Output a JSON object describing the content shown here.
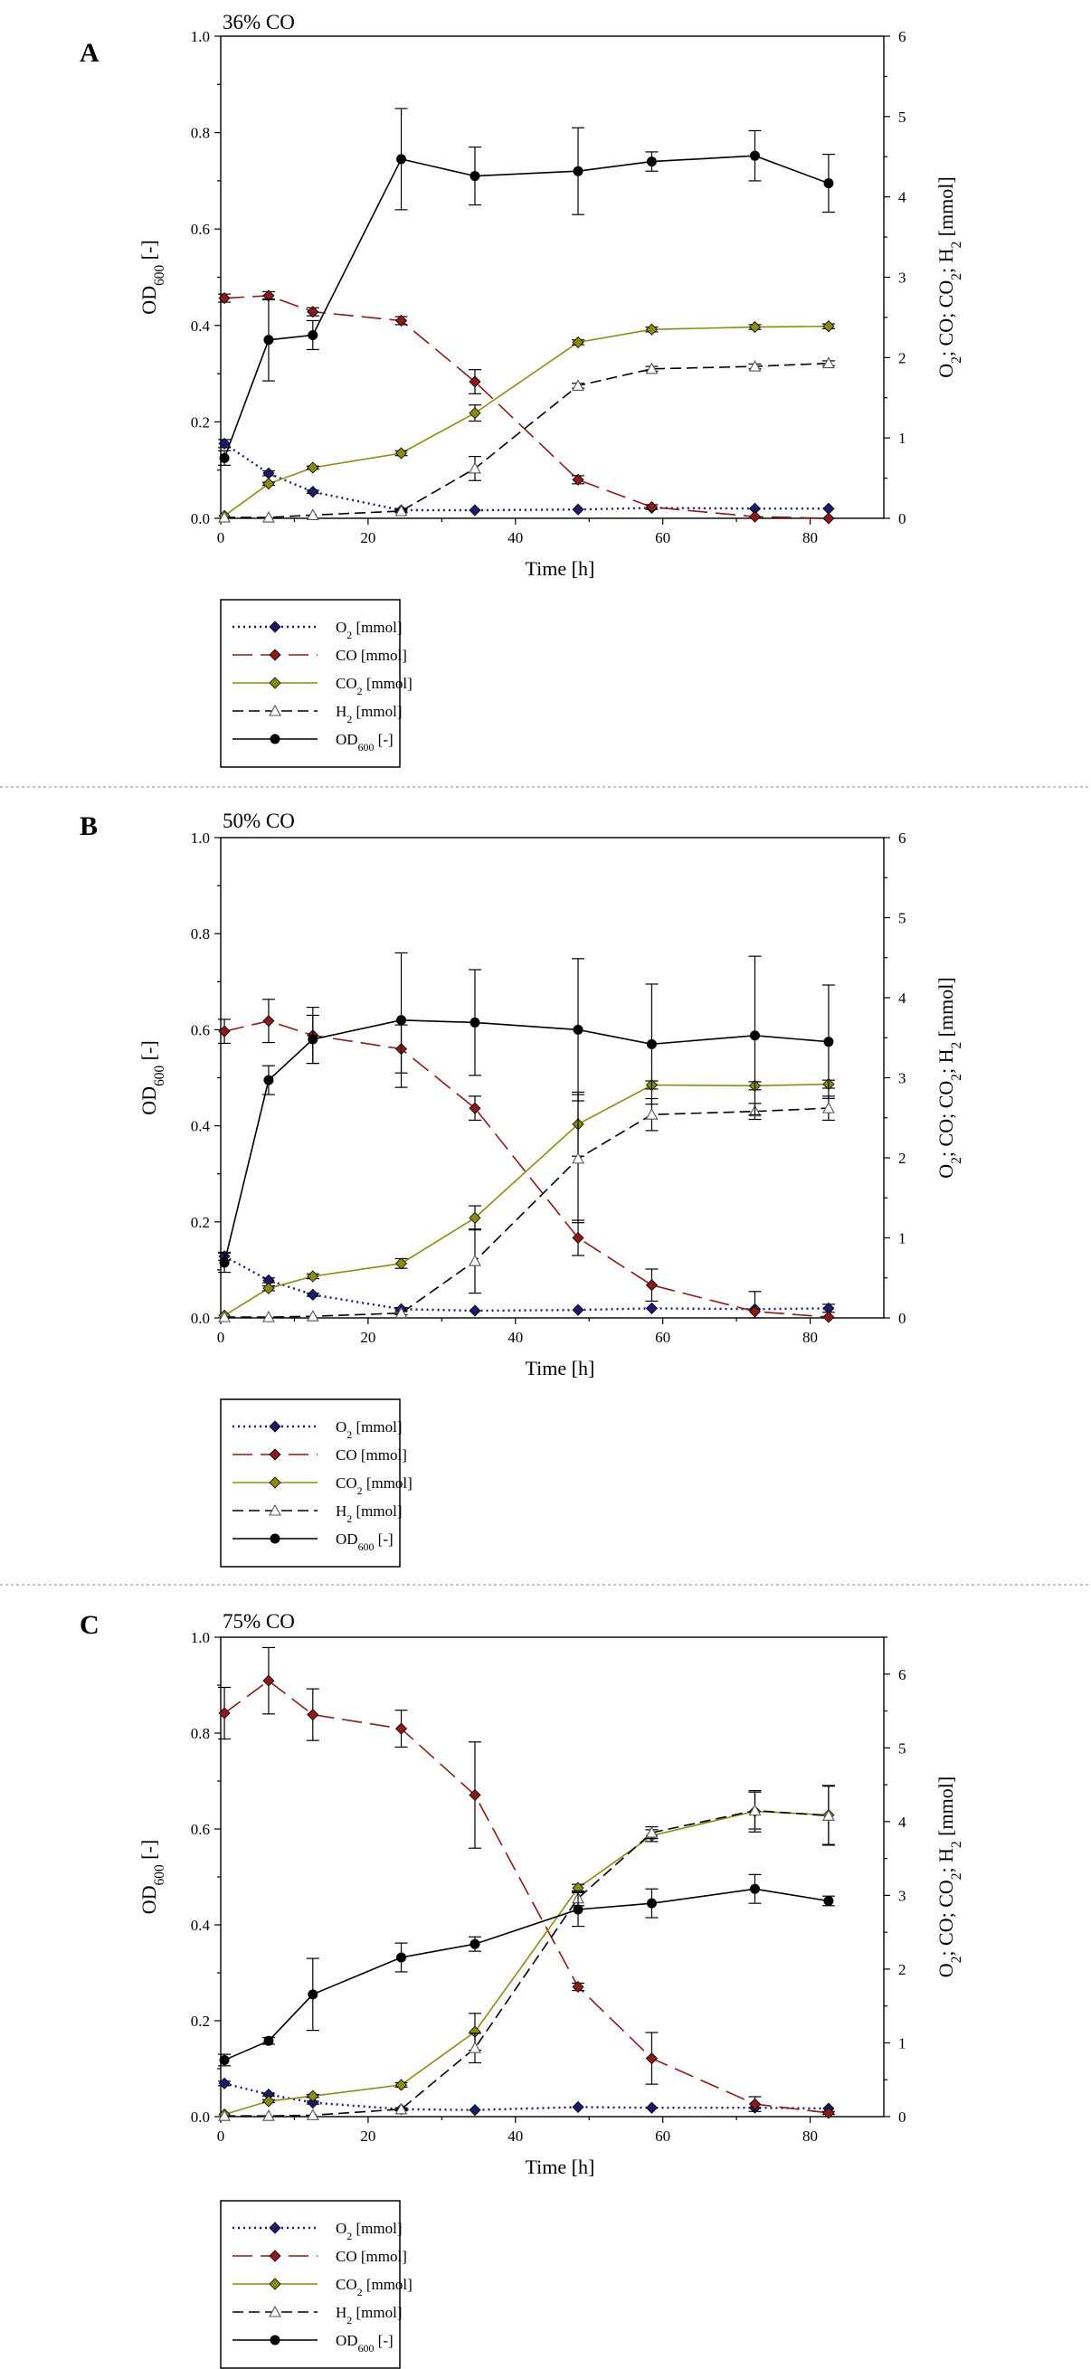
{
  "chart_data": [
    {
      "type": "line",
      "panel_label": "A",
      "title": "36% CO",
      "xlabel": "Time [h]",
      "ylabel": "OD600 [-]",
      "ylabel_right": "O2; CO; CO2; H2 [mmol]",
      "xlim": [
        0,
        90
      ],
      "ylim": [
        0,
        1.0
      ],
      "ylim_right": [
        0,
        6
      ],
      "xticks": [
        "0",
        "20",
        "40",
        "60",
        "80"
      ],
      "yticks": [
        "0.0",
        "0.2",
        "0.4",
        "0.6",
        "0.8",
        "1.0"
      ],
      "yticks_right": [
        "0",
        "1",
        "2",
        "3",
        "4",
        "5",
        "6"
      ],
      "series": [
        {
          "name": "O2 [mmol]",
          "axis": "right",
          "color": "#1a1a6e",
          "style": "dotted",
          "marker": "diamond",
          "x": [
            0.5,
            6.5,
            12.5,
            24.5,
            34.5,
            48.5,
            58.5,
            72.5,
            82.5
          ],
          "y": [
            0.93,
            0.56,
            0.33,
            0.1,
            0.1,
            0.11,
            0.13,
            0.12,
            0.12
          ],
          "err": [
            0.05,
            0.03,
            0.02,
            0.02,
            0.01,
            0.01,
            0.01,
            0.01,
            0.01
          ]
        },
        {
          "name": "CO [mmol]",
          "axis": "right",
          "color": "#8b1a1a",
          "style": "longdash",
          "marker": "diamond",
          "x": [
            0.5,
            6.5,
            12.5,
            24.5,
            34.5,
            48.5,
            58.5,
            72.5,
            82.5
          ],
          "y": [
            2.74,
            2.77,
            2.57,
            2.46,
            1.7,
            0.48,
            0.14,
            0.02,
            0.0
          ],
          "err": [
            0.05,
            0.05,
            0.05,
            0.05,
            0.15,
            0.05,
            0.03,
            0.01,
            0.01
          ]
        },
        {
          "name": "CO2 [mmol]",
          "axis": "right",
          "color": "#8b8b14",
          "style": "solid",
          "marker": "diamond",
          "x": [
            0.5,
            6.5,
            12.5,
            24.5,
            34.5,
            48.5,
            58.5,
            72.5,
            82.5
          ],
          "y": [
            0.03,
            0.43,
            0.63,
            0.81,
            1.31,
            2.19,
            2.35,
            2.38,
            2.39
          ],
          "err": [
            0.01,
            0.02,
            0.02,
            0.03,
            0.1,
            0.03,
            0.03,
            0.03,
            0.03
          ]
        },
        {
          "name": "H2 [mmol]",
          "axis": "right",
          "color": "#000000",
          "style": "dashed",
          "marker": "triangle",
          "x": [
            0.5,
            6.5,
            12.5,
            24.5,
            34.5,
            48.5,
            58.5,
            72.5,
            82.5
          ],
          "y": [
            0.01,
            0.01,
            0.04,
            0.09,
            0.62,
            1.65,
            1.86,
            1.89,
            1.93
          ],
          "err": [
            0.01,
            0.01,
            0.01,
            0.02,
            0.15,
            0.03,
            0.03,
            0.03,
            0.03
          ]
        },
        {
          "name": "OD600 [-]",
          "axis": "left",
          "color": "#000000",
          "style": "solid",
          "marker": "circle",
          "x": [
            0.5,
            6.5,
            12.5,
            24.5,
            34.5,
            48.5,
            58.5,
            72.5,
            82.5
          ],
          "y": [
            0.125,
            0.37,
            0.38,
            0.745,
            0.71,
            0.72,
            0.74,
            0.752,
            0.695
          ],
          "err": [
            0.015,
            0.085,
            0.03,
            0.105,
            0.06,
            0.09,
            0.02,
            0.052,
            0.06
          ]
        }
      ]
    },
    {
      "type": "line",
      "panel_label": "B",
      "title": "50% CO",
      "xlabel": "Time [h]",
      "ylabel": "OD600 [-]",
      "ylabel_right": "O2; CO; CO2; H2 [mmol]",
      "xlim": [
        0,
        90
      ],
      "ylim": [
        0,
        1.0
      ],
      "ylim_right": [
        0,
        6
      ],
      "xticks": [
        "0",
        "20",
        "40",
        "60",
        "80"
      ],
      "yticks": [
        "0.0",
        "0.2",
        "0.4",
        "0.6",
        "0.8",
        "1.0"
      ],
      "yticks_right": [
        "0",
        "1",
        "2",
        "3",
        "4",
        "5",
        "6"
      ],
      "series": [
        {
          "name": "O2 [mmol]",
          "axis": "right",
          "color": "#1a1a6e",
          "style": "dotted",
          "marker": "diamond",
          "x": [
            0.5,
            6.5,
            12.5,
            24.5,
            34.5,
            48.5,
            58.5,
            72.5,
            82.5
          ],
          "y": [
            0.77,
            0.47,
            0.29,
            0.11,
            0.09,
            0.1,
            0.12,
            0.11,
            0.12
          ],
          "err": [
            0.05,
            0.03,
            0.02,
            0.02,
            0.01,
            0.01,
            0.01,
            0.01,
            0.05
          ]
        },
        {
          "name": "CO [mmol]",
          "axis": "right",
          "color": "#8b1a1a",
          "style": "longdash",
          "marker": "diamond",
          "x": [
            0.5,
            6.5,
            12.5,
            24.5,
            34.5,
            48.5,
            58.5,
            72.5,
            82.5
          ],
          "y": [
            3.58,
            3.71,
            3.53,
            3.36,
            2.62,
            1.0,
            0.41,
            0.08,
            0.01
          ],
          "err": [
            0.15,
            0.27,
            0.35,
            0.3,
            0.15,
            0.22,
            0.2,
            0.25,
            0.01
          ]
        },
        {
          "name": "CO2 [mmol]",
          "axis": "right",
          "color": "#8b8b14",
          "style": "solid",
          "marker": "diamond",
          "x": [
            0.5,
            6.5,
            12.5,
            24.5,
            34.5,
            48.5,
            58.5,
            72.5,
            82.5
          ],
          "y": [
            0.03,
            0.37,
            0.52,
            0.68,
            1.25,
            2.42,
            2.91,
            2.9,
            2.92
          ],
          "err": [
            0.01,
            0.03,
            0.03,
            0.06,
            0.15,
            0.4,
            0.05,
            0.05,
            0.05
          ]
        },
        {
          "name": "H2 [mmol]",
          "axis": "right",
          "color": "#000000",
          "style": "dashed",
          "marker": "triangle",
          "x": [
            0.5,
            6.5,
            12.5,
            24.5,
            34.5,
            48.5,
            58.5,
            72.5,
            82.5
          ],
          "y": [
            0.01,
            0.01,
            0.02,
            0.06,
            0.71,
            1.99,
            2.54,
            2.58,
            2.62
          ],
          "err": [
            0.01,
            0.01,
            0.01,
            0.02,
            0.4,
            0.8,
            0.2,
            0.1,
            0.15
          ]
        },
        {
          "name": "OD600 [-]",
          "axis": "left",
          "color": "#000000",
          "style": "solid",
          "marker": "circle",
          "x": [
            0.5,
            6.5,
            12.5,
            24.5,
            34.5,
            48.5,
            58.5,
            72.5,
            82.5
          ],
          "y": [
            0.115,
            0.495,
            0.58,
            0.62,
            0.615,
            0.6,
            0.57,
            0.588,
            0.575
          ],
          "err": [
            0.02,
            0.03,
            0.05,
            0.14,
            0.11,
            0.148,
            0.125,
            0.165,
            0.118
          ]
        }
      ]
    },
    {
      "type": "line",
      "panel_label": "C",
      "title": "75% CO",
      "xlabel": "Time [h]",
      "ylabel": "OD600 [-]",
      "ylabel_right": "O2; CO; CO2; H2 [mmol]",
      "xlim": [
        0,
        90
      ],
      "ylim": [
        0,
        1.0
      ],
      "ylim_right": [
        0,
        6.5
      ],
      "xticks": [
        "0",
        "20",
        "40",
        "60",
        "80"
      ],
      "yticks": [
        "0.0",
        "0.2",
        "0.4",
        "0.6",
        "0.8",
        "1.0"
      ],
      "yticks_right": [
        "0",
        "1",
        "2",
        "3",
        "4",
        "5",
        "6"
      ],
      "series": [
        {
          "name": "O2 [mmol]",
          "axis": "right",
          "color": "#1a1a6e",
          "style": "dotted",
          "marker": "diamond",
          "x": [
            0.5,
            6.5,
            12.5,
            24.5,
            34.5,
            48.5,
            58.5,
            72.5,
            82.5
          ],
          "y": [
            0.45,
            0.3,
            0.19,
            0.1,
            0.09,
            0.13,
            0.12,
            0.12,
            0.11
          ],
          "err": [
            0.03,
            0.02,
            0.02,
            0.01,
            0.01,
            0.01,
            0.01,
            0.01,
            0.01
          ]
        },
        {
          "name": "CO [mmol]",
          "axis": "right",
          "color": "#8b1a1a",
          "style": "longdash",
          "marker": "diamond",
          "x": [
            0.5,
            6.5,
            12.5,
            24.5,
            34.5,
            48.5,
            58.5,
            72.5,
            82.5
          ],
          "y": [
            5.47,
            5.91,
            5.45,
            5.26,
            4.36,
            1.76,
            0.79,
            0.17,
            0.05
          ],
          "err": [
            0.35,
            0.45,
            0.35,
            0.25,
            0.72,
            0.05,
            0.35,
            0.1,
            0.02
          ]
        },
        {
          "name": "CO2 [mmol]",
          "axis": "right",
          "color": "#8b8b14",
          "style": "solid",
          "marker": "diamond",
          "x": [
            0.5,
            6.5,
            12.5,
            24.5,
            34.5,
            48.5,
            58.5,
            72.5,
            82.5
          ],
          "y": [
            0.03,
            0.21,
            0.28,
            0.43,
            1.15,
            3.1,
            3.81,
            4.14,
            4.09
          ],
          "err": [
            0.01,
            0.02,
            0.02,
            0.03,
            0.25,
            0.05,
            0.08,
            0.28,
            0.4
          ]
        },
        {
          "name": "H2 [mmol]",
          "axis": "right",
          "color": "#000000",
          "style": "dashed",
          "marker": "triangle",
          "x": [
            0.5,
            6.5,
            12.5,
            24.5,
            34.5,
            48.5,
            58.5,
            72.5,
            82.5
          ],
          "y": [
            0.01,
            0.01,
            0.02,
            0.1,
            0.93,
            2.96,
            3.85,
            4.15,
            4.08
          ],
          "err": [
            0.01,
            0.01,
            0.01,
            0.02,
            0.2,
            0.1,
            0.08,
            0.25,
            0.4
          ]
        },
        {
          "name": "OD600 [-]",
          "axis": "left",
          "color": "#000000",
          "style": "solid",
          "marker": "circle",
          "x": [
            0.5,
            6.5,
            12.5,
            24.5,
            34.5,
            48.5,
            58.5,
            72.5,
            82.5
          ],
          "y": [
            0.118,
            0.158,
            0.255,
            0.332,
            0.36,
            0.432,
            0.445,
            0.475,
            0.45
          ],
          "err": [
            0.012,
            0.007,
            0.075,
            0.03,
            0.015,
            0.035,
            0.03,
            0.03,
            0.01
          ]
        }
      ]
    }
  ],
  "legend": [
    {
      "label": "O",
      "sub": "2",
      "suffix": " [mmol]",
      "style": "dotted",
      "color": "#1a1a6e",
      "marker": "diamond"
    },
    {
      "label": "CO",
      "sub": "",
      "suffix": " [mmol]",
      "style": "longdash",
      "color": "#8b1a1a",
      "marker": "diamond"
    },
    {
      "label": "CO",
      "sub": "2",
      "suffix": " [mmol]",
      "style": "solid",
      "color": "#8b8b14",
      "marker": "diamond"
    },
    {
      "label": "H",
      "sub": "2",
      "suffix": " [mmol]",
      "style": "dashed",
      "color": "#000000",
      "marker": "triangle"
    },
    {
      "label": "OD",
      "sub": "600",
      "suffix": " [-]",
      "style": "solid",
      "color": "#000000",
      "marker": "circle"
    }
  ],
  "axis_text": {
    "od_main": "OD",
    "od_sub": "600",
    "od_suffix": " [-]",
    "right_parts": [
      {
        "t": "O",
        "s": "2"
      },
      {
        "t": "; CO; CO",
        "s": "2"
      },
      {
        "t": "; H",
        "s": "2"
      },
      {
        "t": " [mmol]",
        "s": ""
      }
    ]
  }
}
